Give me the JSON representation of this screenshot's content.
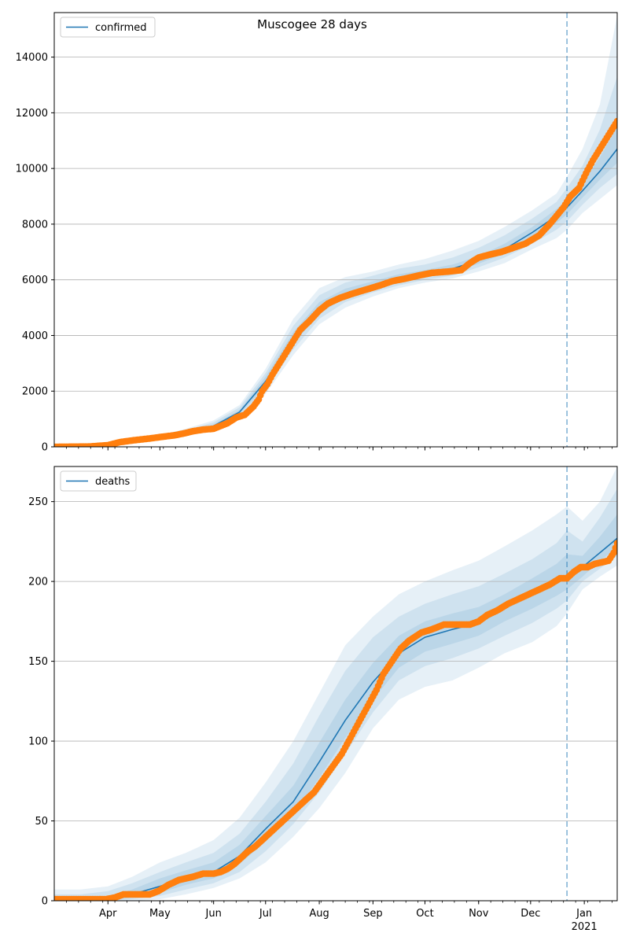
{
  "title": "Muscogee 28 days",
  "colors": {
    "model": "#1f77b4",
    "observed": "#ff7f0e",
    "band": "#1f77b4",
    "grid": "#b0b0b0",
    "vline": "#1f77b4"
  },
  "chart_data": [
    {
      "type": "line",
      "name": "confirmed-panel",
      "legend": "confirmed",
      "legend_location": "upper-left",
      "grid": "horizontal",
      "x_unit": "day of 2020 (0 = Mar 1, 2020)",
      "x_range": [
        0,
        325
      ],
      "forecast_start": 296,
      "ylim": [
        0,
        15600
      ],
      "yticks": [
        0,
        2000,
        4000,
        6000,
        8000,
        10000,
        12000,
        14000
      ],
      "yticklabels": [
        "0",
        "2000",
        "4000",
        "6000",
        "8000",
        "10000",
        "12000",
        "14000"
      ],
      "show_xticklabels": false,
      "model": {
        "x": [
          0,
          15,
          31,
          45,
          61,
          76,
          92,
          107,
          122,
          138,
          153,
          168,
          184,
          199,
          214,
          230,
          245,
          260,
          276,
          290,
          296,
          305,
          315,
          325
        ],
        "y": [
          0,
          20,
          80,
          200,
          320,
          500,
          750,
          1250,
          2350,
          3900,
          5000,
          5500,
          5800,
          6050,
          6200,
          6400,
          6700,
          7100,
          7700,
          8300,
          8600,
          9200,
          9900,
          10700
        ]
      },
      "bands": [
        {
          "lower": [
            0,
            0,
            40,
            130,
            230,
            380,
            600,
            1050,
            1900,
            3300,
            4400,
            5000,
            5400,
            5700,
            5900,
            6050,
            6300,
            6600,
            7100,
            7500,
            7800,
            8400,
            8900,
            9400
          ],
          "upper": [
            0,
            50,
            130,
            280,
            420,
            650,
            950,
            1500,
            2800,
            4600,
            5700,
            6100,
            6300,
            6550,
            6750,
            7050,
            7400,
            7900,
            8500,
            9100,
            9700,
            10700,
            12300,
            15500
          ]
        },
        {
          "lower": [
            0,
            5,
            55,
            155,
            260,
            420,
            650,
            1120,
            2050,
            3500,
            4600,
            5200,
            5550,
            5800,
            6000,
            6150,
            6450,
            6800,
            7300,
            7800,
            8100,
            8700,
            9300,
            9800
          ],
          "upper": [
            0,
            40,
            110,
            250,
            390,
            600,
            880,
            1420,
            2650,
            4350,
            5450,
            5900,
            6150,
            6400,
            6550,
            6800,
            7150,
            7600,
            8200,
            8800,
            9300,
            10100,
            11400,
            13300
          ]
        },
        {
          "lower": [
            0,
            10,
            65,
            175,
            285,
            455,
            695,
            1180,
            2180,
            3680,
            4800,
            5350,
            5680,
            5930,
            6100,
            6280,
            6580,
            6950,
            7500,
            8050,
            8350,
            8950,
            9600,
            10200
          ],
          "upper": [
            0,
            30,
            95,
            225,
            355,
            545,
            805,
            1320,
            2520,
            4120,
            5200,
            5680,
            5950,
            6200,
            6350,
            6550,
            6850,
            7300,
            7900,
            8550,
            8850,
            9500,
            10400,
            11500
          ]
        }
      ],
      "observed": {
        "x": [
          0,
          20,
          31,
          38,
          45,
          55,
          61,
          70,
          76,
          80,
          86,
          92,
          100,
          105,
          110,
          115,
          118,
          120,
          123,
          126,
          130,
          134,
          138,
          142,
          147,
          153,
          158,
          165,
          172,
          180,
          188,
          195,
          203,
          210,
          218,
          228,
          235,
          240,
          245,
          251,
          258,
          265,
          272,
          280,
          286,
          290,
          294,
          298,
          303,
          306,
          308,
          311,
          314,
          316,
          318,
          320,
          322,
          324,
          325
        ],
        "y": [
          0,
          10,
          60,
          170,
          230,
          300,
          350,
          420,
          500,
          560,
          620,
          650,
          850,
          1050,
          1150,
          1450,
          1700,
          2000,
          2250,
          2600,
          3000,
          3400,
          3800,
          4200,
          4500,
          4900,
          5150,
          5350,
          5500,
          5650,
          5800,
          5950,
          6050,
          6150,
          6250,
          6300,
          6350,
          6600,
          6800,
          6900,
          7000,
          7150,
          7300,
          7600,
          8000,
          8300,
          8600,
          9000,
          9300,
          9700,
          9950,
          10300,
          10600,
          10800,
          11000,
          11200,
          11400,
          11600,
          11700
        ]
      }
    },
    {
      "type": "line",
      "name": "deaths-panel",
      "legend": "deaths",
      "legend_location": "upper-left",
      "grid": "horizontal",
      "x_unit": "day of 2020 (0 = Mar 1, 2020)",
      "x_range": [
        0,
        325
      ],
      "forecast_start": 296,
      "ylim": [
        0,
        272
      ],
      "yticks": [
        0,
        50,
        100,
        150,
        200,
        250
      ],
      "yticklabels": [
        "0",
        "50",
        "100",
        "150",
        "200",
        "250"
      ],
      "show_xticklabels": true,
      "xticks": [
        31,
        61,
        92,
        122,
        153,
        184,
        214,
        245,
        275,
        306
      ],
      "xticklabels": [
        "Apr",
        "May",
        "Jun",
        "Jul",
        "Aug",
        "Sep",
        "Oct",
        "Nov",
        "Dec",
        "Jan"
      ],
      "xtick_sublabel": {
        "index": 9,
        "text": "2021"
      },
      "model": {
        "x": [
          0,
          15,
          31,
          45,
          61,
          76,
          92,
          107,
          122,
          138,
          153,
          168,
          184,
          199,
          214,
          230,
          245,
          260,
          276,
          290,
          296,
          305,
          315,
          325
        ],
        "y": [
          0,
          0.5,
          1.5,
          4,
          9,
          14,
          18,
          28,
          45,
          62,
          87,
          113,
          137,
          155,
          165,
          170,
          174,
          183,
          192,
          200,
          203,
          209,
          218,
          227
        ]
      },
      "bands": [
        {
          "lower": [
            0,
            0,
            0,
            0,
            1,
            4,
            8,
            14,
            24,
            40,
            58,
            80,
            108,
            126,
            134,
            138,
            146,
            155,
            162,
            172,
            180,
            195,
            203,
            210
          ],
          "upper": [
            7,
            7,
            9,
            15,
            24,
            30,
            38,
            52,
            74,
            100,
            130,
            160,
            178,
            192,
            200,
            207,
            213,
            222,
            232,
            242,
            247,
            238,
            250,
            272
          ]
        },
        {
          "lower": [
            0,
            0,
            0,
            1,
            3,
            7,
            11,
            18,
            31,
            48,
            68,
            92,
            118,
            138,
            147,
            152,
            158,
            166,
            174,
            183,
            188,
            200,
            208,
            216
          ],
          "upper": [
            4,
            4,
            6,
            11,
            18,
            24,
            30,
            42,
            62,
            86,
            116,
            144,
            165,
            178,
            186,
            192,
            197,
            205,
            214,
            224,
            232,
            225,
            240,
            258
          ]
        },
        {
          "lower": [
            0,
            0,
            0,
            2,
            5,
            10,
            14,
            23,
            37,
            54,
            77,
            102,
            126,
            146,
            156,
            161,
            166,
            175,
            183,
            191,
            195,
            203,
            213,
            221
          ],
          "upper": [
            2,
            2,
            3,
            7,
            14,
            19,
            24,
            35,
            53,
            72,
            99,
            126,
            149,
            166,
            175,
            180,
            184,
            192,
            202,
            211,
            217,
            216,
            228,
            242
          ]
        }
      ],
      "observed": {
        "x": [
          0,
          20,
          25,
          30,
          35,
          40,
          48,
          55,
          60,
          66,
          72,
          80,
          86,
          92,
          96,
          100,
          104,
          108,
          112,
          116,
          122,
          126,
          130,
          134,
          138,
          142,
          146,
          150,
          154,
          158,
          162,
          166,
          170,
          174,
          178,
          182,
          186,
          190,
          195,
          200,
          205,
          212,
          218,
          225,
          232,
          240,
          245,
          250,
          256,
          262,
          268,
          274,
          280,
          286,
          292,
          296,
          300,
          304,
          308,
          312,
          316,
          320,
          323,
          325
        ],
        "y": [
          1,
          1,
          1,
          1,
          2,
          4,
          4,
          4,
          6,
          10,
          13,
          15,
          17,
          17,
          18,
          20,
          23,
          27,
          31,
          34,
          40,
          44,
          48,
          52,
          56,
          60,
          64,
          68,
          74,
          80,
          86,
          92,
          100,
          108,
          116,
          124,
          132,
          142,
          150,
          158,
          163,
          168,
          170,
          173,
          173,
          173,
          175,
          179,
          182,
          186,
          189,
          192,
          195,
          198,
          202,
          202,
          206,
          209,
          209,
          211,
          212,
          213,
          218,
          224
        ]
      }
    }
  ]
}
